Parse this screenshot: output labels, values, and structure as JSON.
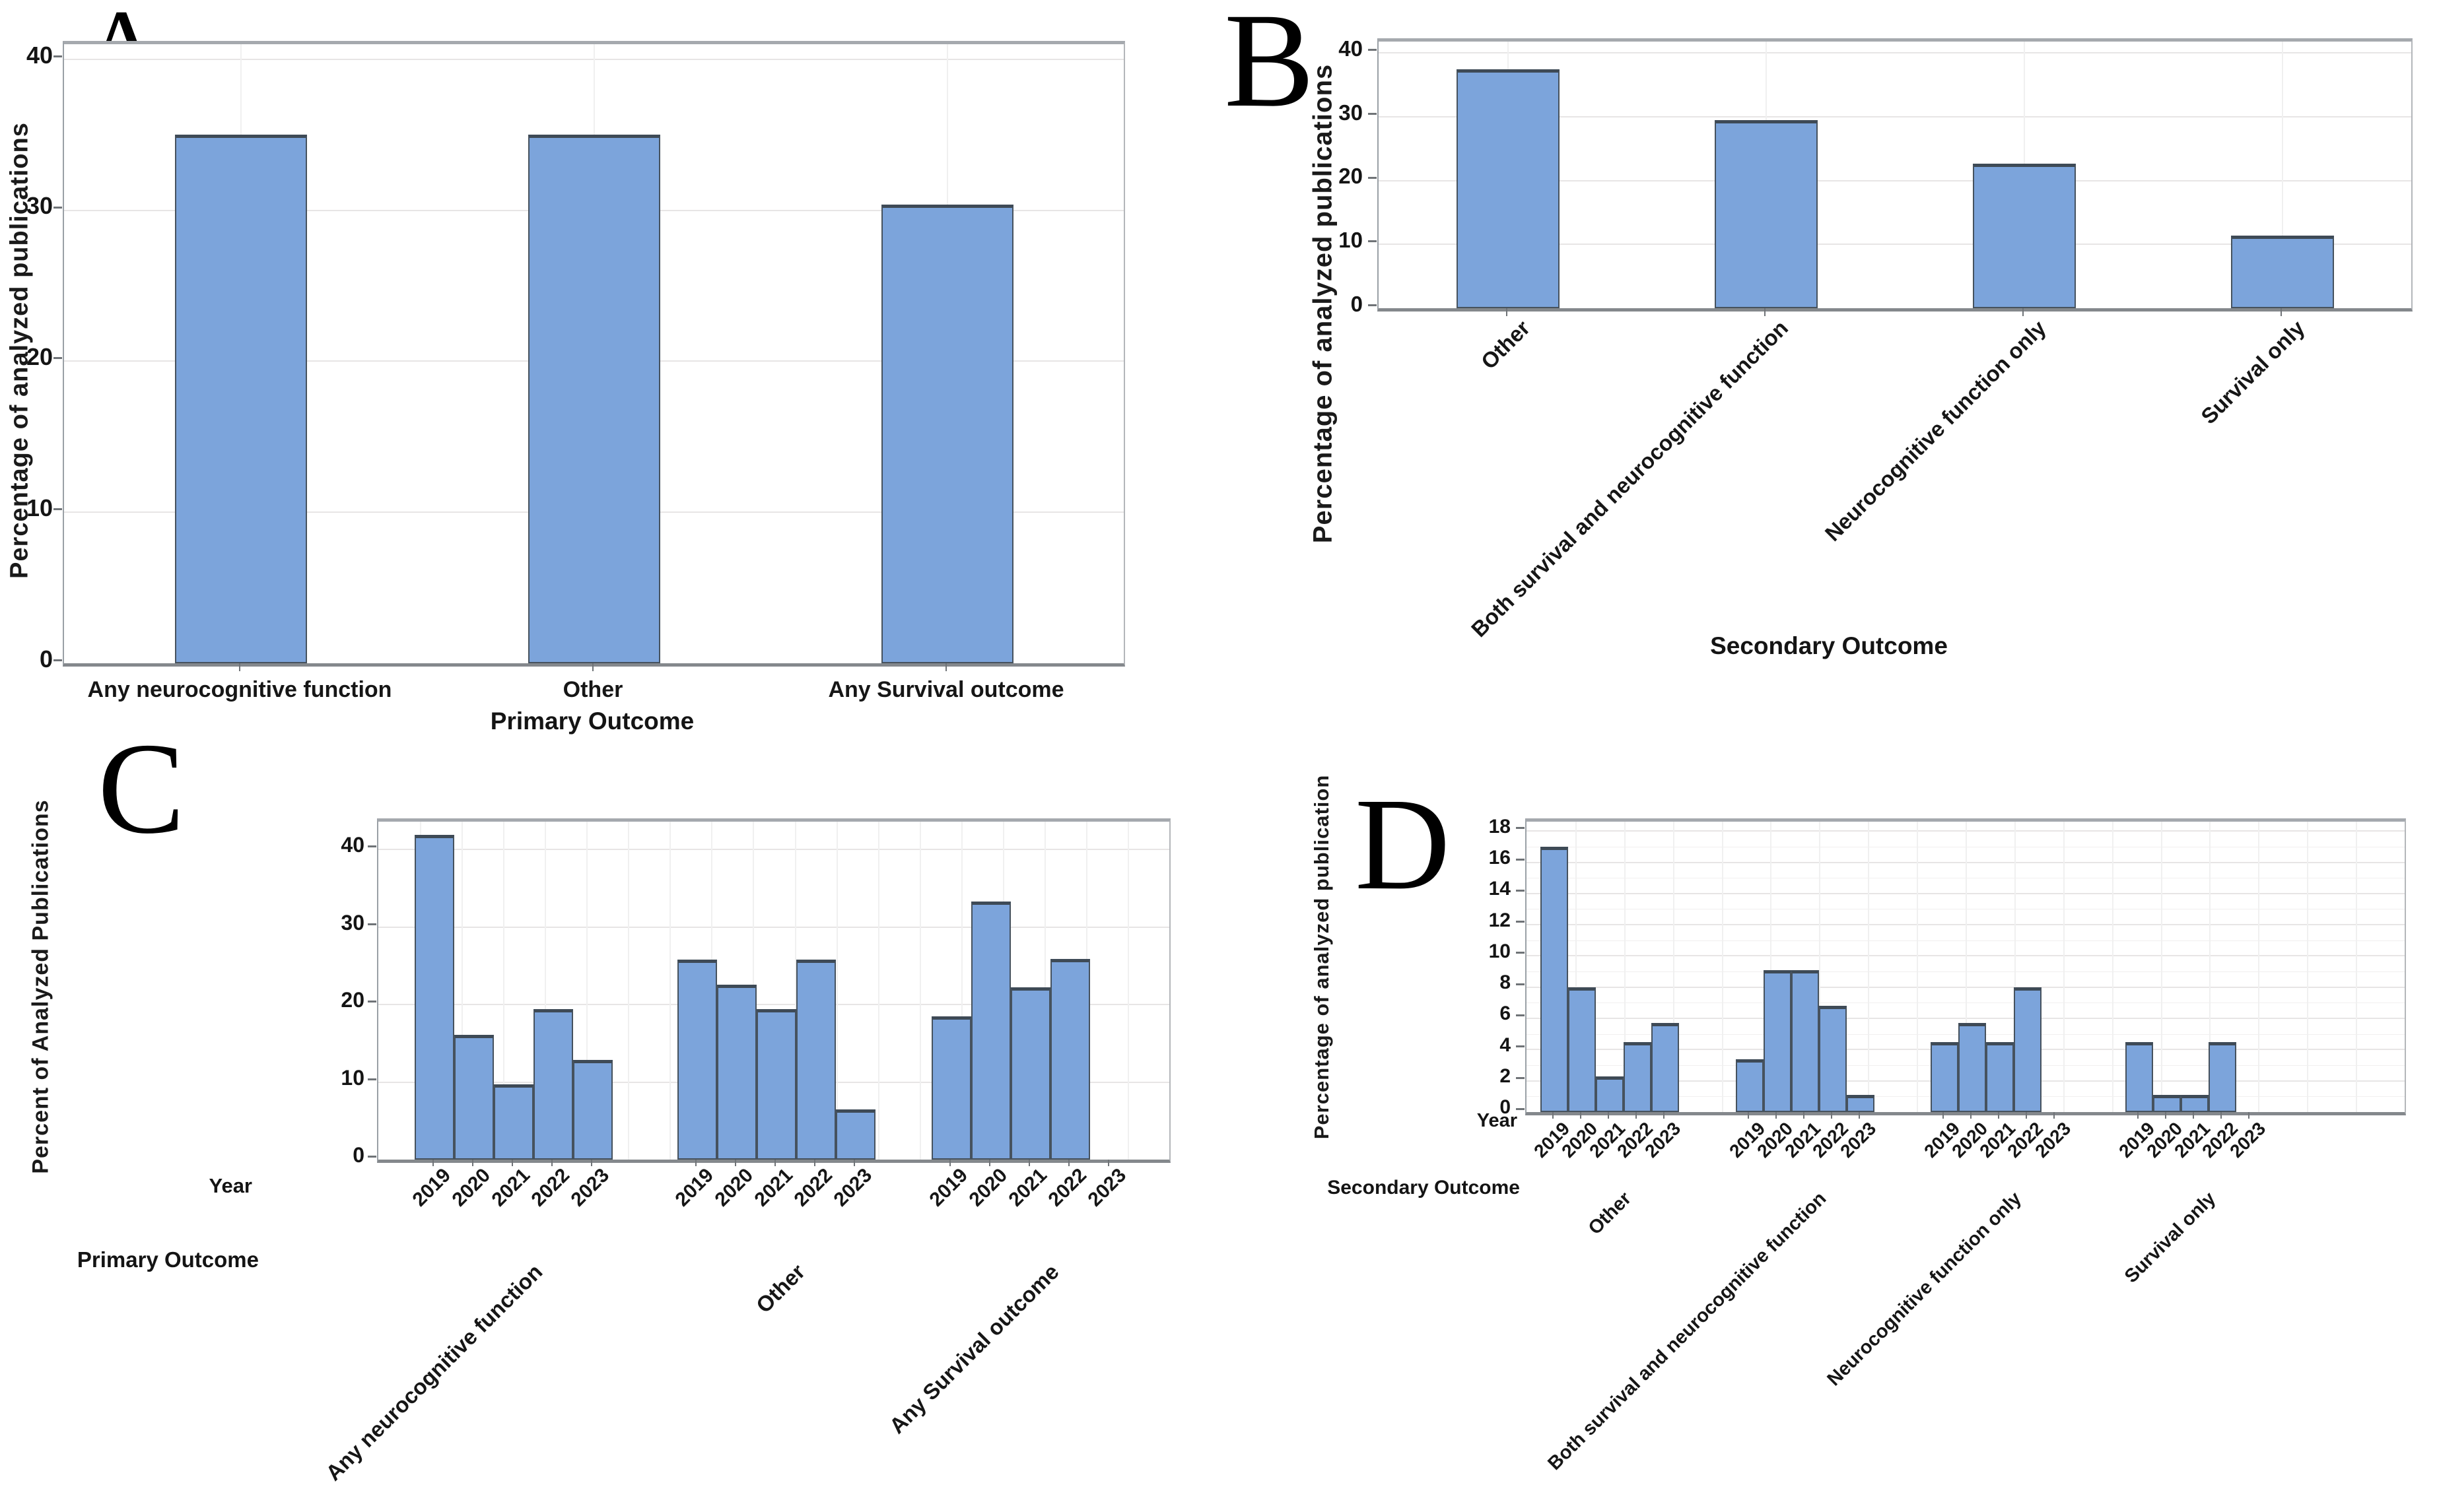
{
  "colors": {
    "bar_fill": "#7CA4DB",
    "bar_border": "#3E4A56",
    "plot_border": "#9AA0A6",
    "axis_bottom": "#84888C",
    "gridline_major": "#E7E5E5",
    "gridline_minor": "#F1EFEF",
    "text": "#141414",
    "background": "#FFFFFF"
  },
  "chart_data": [
    {
      "id": "A",
      "panel_letter": "A",
      "type": "bar",
      "title": "",
      "xlabel": "Primary Outcome",
      "ylabel": "Percentage of analyzed publications",
      "categories": [
        "Any neurocognitive function",
        "Other",
        "Any Survival outcome"
      ],
      "values": [
        35.0,
        35.0,
        30.4
      ],
      "yticks": [
        0,
        10,
        20,
        30,
        40
      ],
      "ylim": [
        0,
        41
      ],
      "grid": true,
      "legend": false
    },
    {
      "id": "B",
      "panel_letter": "B",
      "type": "bar",
      "title": "",
      "xlabel": "Secondary Outcome",
      "ylabel": "Percentage of analyzed publications",
      "categories": [
        "Other",
        "Both survival and neurocognitive function",
        "Neurocognitive function only",
        "Survival only"
      ],
      "values": [
        37.5,
        29.5,
        22.7,
        11.4
      ],
      "yticks": [
        0,
        10,
        20,
        30,
        40
      ],
      "ylim": [
        0,
        41.8
      ],
      "grid": true,
      "legend": false
    },
    {
      "id": "C",
      "panel_letter": "C",
      "type": "bar",
      "grouped": true,
      "title": "",
      "ylabel": "Percent of Analyzed Publications",
      "row_labels": [
        "Year",
        "Primary Outcome"
      ],
      "x": [
        "2019",
        "2020",
        "2021",
        "2022",
        "2023"
      ],
      "series": [
        {
          "name": "Any neurocognitive function",
          "values": [
            41.9,
            16.1,
            9.7,
            19.4,
            12.9
          ]
        },
        {
          "name": "Other",
          "values": [
            25.8,
            22.6,
            19.4,
            25.8,
            6.5
          ]
        },
        {
          "name": "Any Survival outcome",
          "values": [
            18.5,
            33.3,
            22.2,
            25.9,
            0
          ]
        }
      ],
      "yticks": [
        0,
        10,
        20,
        30,
        40
      ],
      "ylim": [
        0,
        43.6
      ],
      "grid": true,
      "legend": false
    },
    {
      "id": "D",
      "panel_letter": "D",
      "type": "bar",
      "grouped": true,
      "title": "",
      "ylabel": "Percentage of analyzed publication",
      "row_labels": [
        "Year",
        "Secondary Outcome"
      ],
      "x": [
        "2019",
        "2020",
        "2021",
        "2022",
        "2023"
      ],
      "series": [
        {
          "name": "Other",
          "values": [
            17.0,
            8.0,
            2.3,
            4.5,
            5.7
          ]
        },
        {
          "name": "Both survival and neurocognitive function",
          "values": [
            3.4,
            9.1,
            9.1,
            6.8,
            1.1
          ]
        },
        {
          "name": "Neurocognitive function only",
          "values": [
            4.5,
            5.7,
            4.5,
            8.0,
            0
          ]
        },
        {
          "name": "Survival only",
          "values": [
            4.5,
            1.1,
            1.1,
            4.5,
            0
          ]
        }
      ],
      "yticks": [
        0,
        2,
        4,
        6,
        8,
        10,
        12,
        14,
        16,
        18
      ],
      "ylim": [
        0,
        18.6
      ],
      "grid": true,
      "legend": false
    }
  ]
}
